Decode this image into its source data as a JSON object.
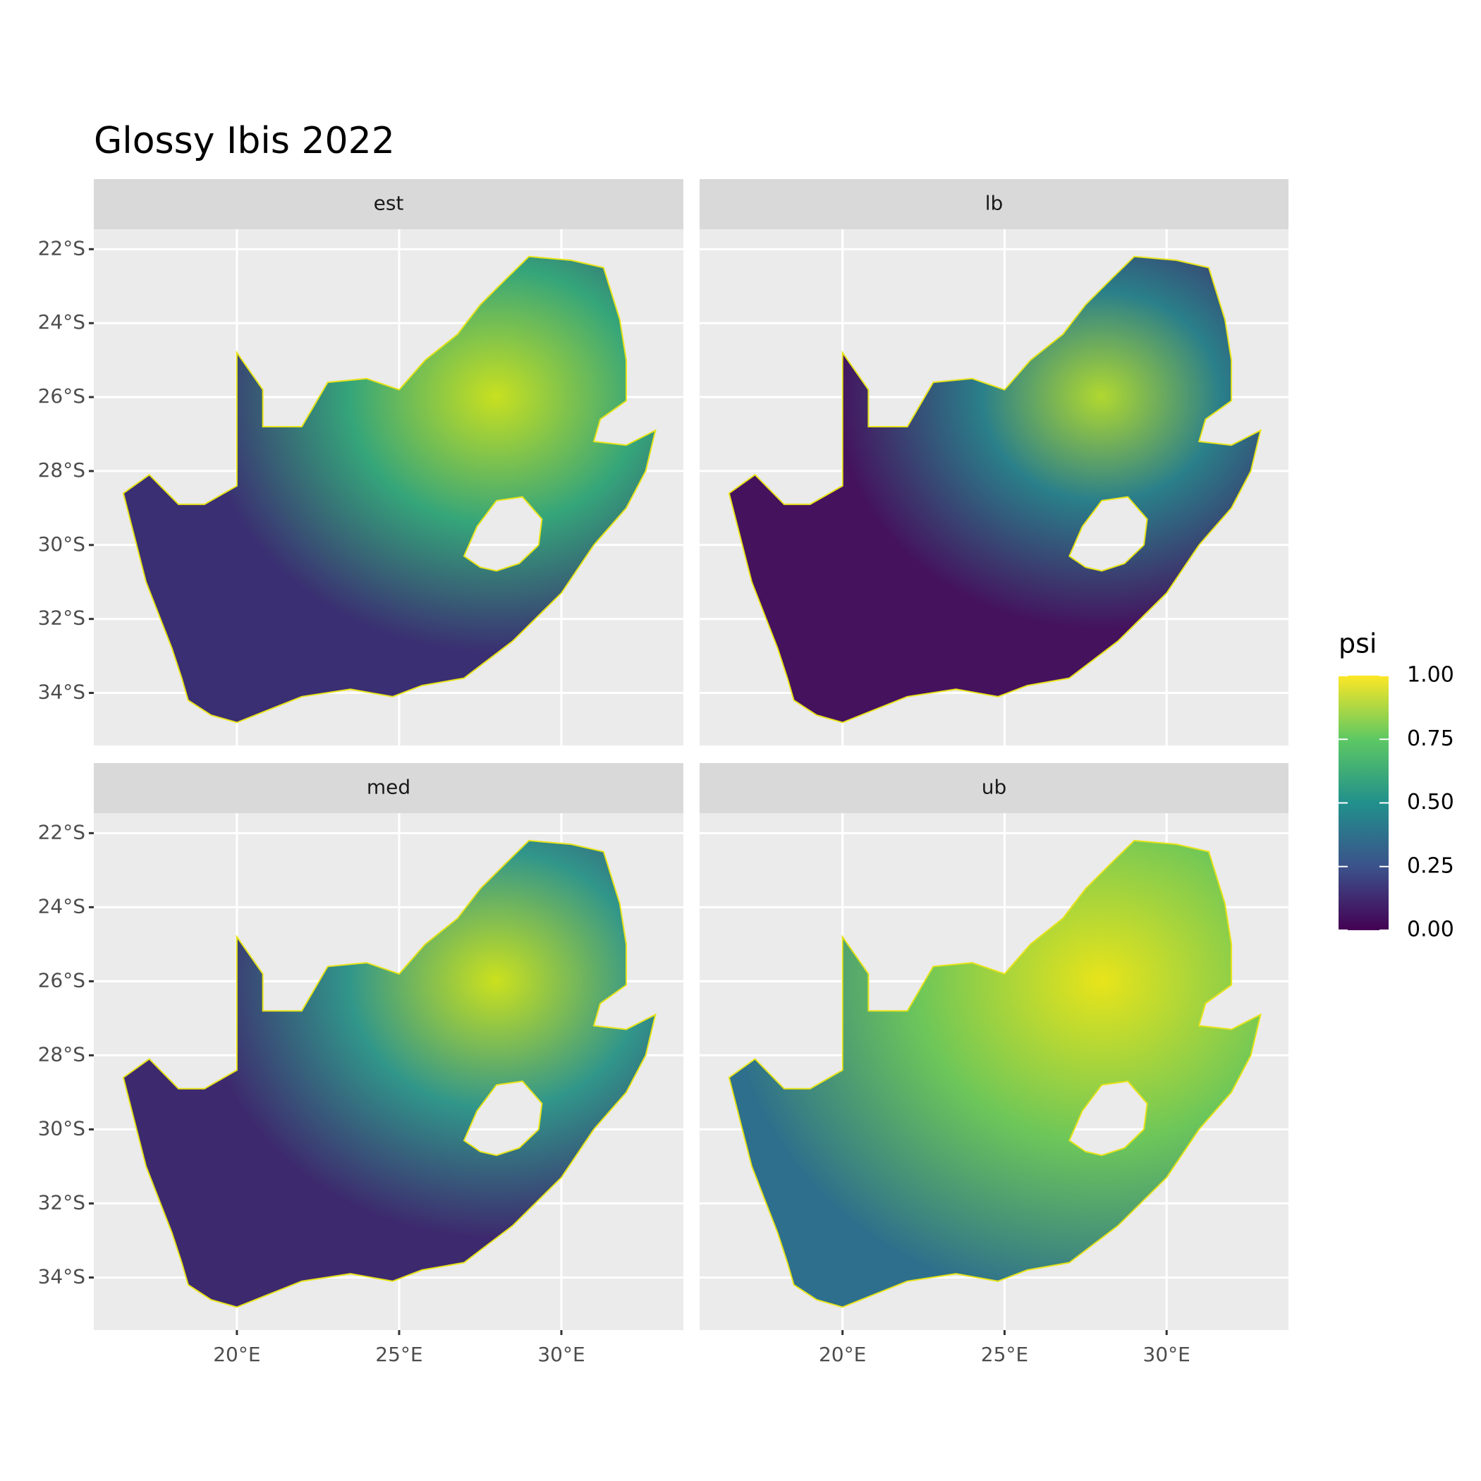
{
  "chart_data": {
    "type": "map",
    "title": "Glossy Ibis 2022",
    "panels": [
      "est",
      "lb",
      "med",
      "ub"
    ],
    "xlim": [
      15.59,
      33.76
    ],
    "ylim": [
      -35.42,
      -21.46
    ],
    "xticks": [
      {
        "value": 20,
        "label": "20°E"
      },
      {
        "value": 25,
        "label": "25°E"
      },
      {
        "value": 30,
        "label": "30°E"
      }
    ],
    "yticks": [
      {
        "value": -22,
        "label": "22°S"
      },
      {
        "value": -24,
        "label": "24°S"
      },
      {
        "value": -26,
        "label": "26°S"
      },
      {
        "value": -28,
        "label": "28°S"
      },
      {
        "value": -30,
        "label": "30°S"
      },
      {
        "value": -32,
        "label": "32°S"
      },
      {
        "value": -34,
        "label": "34°S"
      }
    ],
    "grid": true,
    "legend": {
      "title": "psi",
      "lim": [
        0,
        1
      ],
      "ticks": [
        {
          "value": 0,
          "label": "0.00"
        },
        {
          "value": 0.25,
          "label": "0.25"
        },
        {
          "value": 0.5,
          "label": "0.50"
        },
        {
          "value": 0.75,
          "label": "0.75"
        },
        {
          "value": 1,
          "label": "1.00"
        }
      ],
      "colors": [
        "#440154",
        "#3b528b",
        "#21908c",
        "#5dc863",
        "#fde725"
      ]
    }
  }
}
